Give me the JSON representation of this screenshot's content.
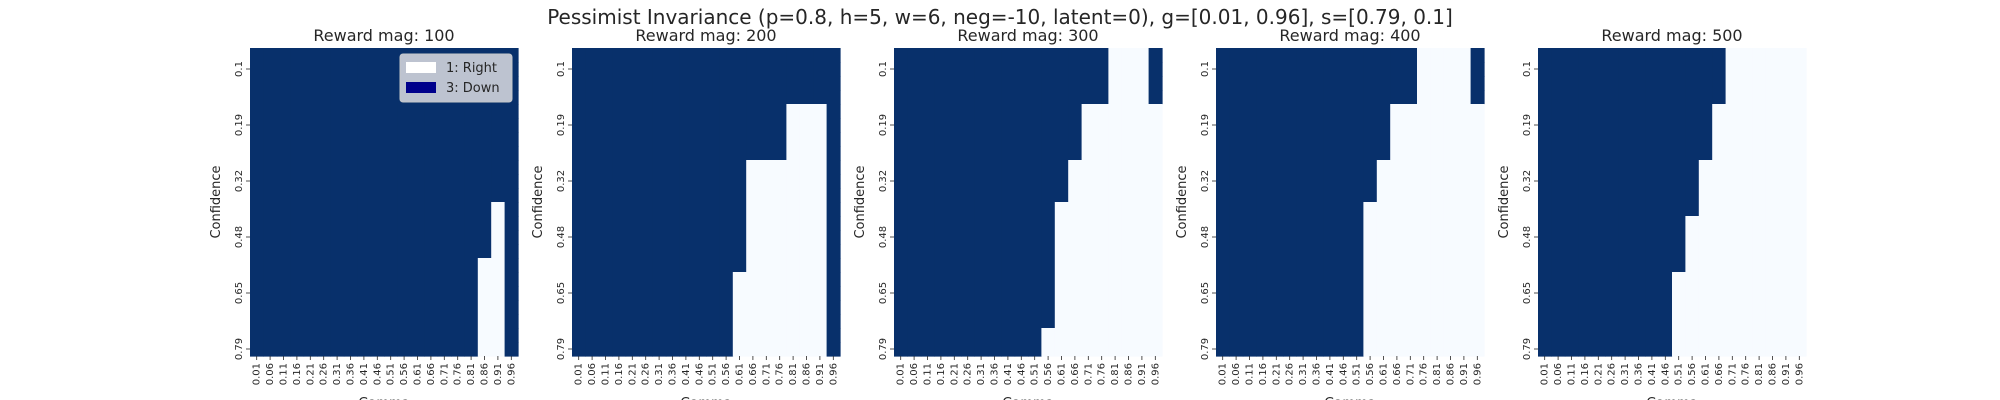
{
  "figure": {
    "suptitle": "Pessimist Invariance (p=0.8, h=5, w=6, neg=-10, latent=0), g=[0.01, 0.96], s=[0.79, 0.1]"
  },
  "colors": {
    "down": "#08306b",
    "right": "#f7fbff",
    "legend_right_swatch": "#ffffff",
    "legend_down_swatch": "#00008b",
    "legend_bg": "#c7cbd6"
  },
  "legend": {
    "items": [
      {
        "label": "1: Right",
        "color": "#ffffff"
      },
      {
        "label": "3: Down",
        "color": "#00008b"
      }
    ]
  },
  "chart_data": [
    {
      "type": "heatmap",
      "title": "Reward mag: 100",
      "xlabel": "Gamma",
      "ylabel": "Confidence",
      "x": [
        0.01,
        0.06,
        0.11,
        0.16,
        0.21,
        0.26,
        0.31,
        0.36,
        0.41,
        0.46,
        0.51,
        0.56,
        0.61,
        0.66,
        0.71,
        0.76,
        0.81,
        0.86,
        0.91,
        0.96
      ],
      "y": [
        0.1,
        0.19,
        0.32,
        0.48,
        0.65,
        0.79
      ],
      "y_rows": 22,
      "legend": "top-right",
      "boundary_first_right_col": [
        20,
        20,
        20,
        20,
        20,
        20,
        20,
        20,
        20,
        20,
        20,
        18,
        18,
        18,
        18,
        17,
        17,
        17,
        17,
        17,
        17,
        17
      ],
      "last_col_down": true
    },
    {
      "type": "heatmap",
      "title": "Reward mag: 200",
      "xlabel": "Gamma",
      "ylabel": "Confidence",
      "x": [
        0.01,
        0.06,
        0.11,
        0.16,
        0.21,
        0.26,
        0.31,
        0.36,
        0.41,
        0.46,
        0.51,
        0.56,
        0.61,
        0.66,
        0.71,
        0.76,
        0.81,
        0.86,
        0.91,
        0.96
      ],
      "y": [
        0.1,
        0.19,
        0.32,
        0.48,
        0.65,
        0.79
      ],
      "y_rows": 22,
      "boundary_first_right_col": [
        20,
        20,
        20,
        20,
        16,
        16,
        16,
        16,
        13,
        13,
        13,
        13,
        13,
        13,
        13,
        13,
        12,
        12,
        12,
        12,
        12,
        12
      ],
      "last_col_down": true
    },
    {
      "type": "heatmap",
      "title": "Reward mag: 300",
      "xlabel": "Gamma",
      "ylabel": "Confidence",
      "x": [
        0.01,
        0.06,
        0.11,
        0.16,
        0.21,
        0.26,
        0.31,
        0.36,
        0.41,
        0.46,
        0.51,
        0.56,
        0.61,
        0.66,
        0.71,
        0.76,
        0.81,
        0.86,
        0.91,
        0.96
      ],
      "y": [
        0.1,
        0.19,
        0.32,
        0.48,
        0.65,
        0.79
      ],
      "y_rows": 22,
      "boundary_first_right_col": [
        16,
        16,
        16,
        16,
        14,
        14,
        14,
        14,
        13,
        13,
        13,
        12,
        12,
        12,
        12,
        12,
        12,
        12,
        12,
        12,
        11,
        11
      ],
      "last_col_down": [
        true,
        true,
        true,
        true,
        false,
        false,
        false,
        false,
        false,
        false,
        false,
        false,
        false,
        false,
        false,
        false,
        false,
        false,
        false,
        false,
        false,
        false
      ]
    },
    {
      "type": "heatmap",
      "title": "Reward mag: 400",
      "xlabel": "Gamma",
      "ylabel": "Confidence",
      "x": [
        0.01,
        0.06,
        0.11,
        0.16,
        0.21,
        0.26,
        0.31,
        0.36,
        0.41,
        0.46,
        0.51,
        0.56,
        0.61,
        0.66,
        0.71,
        0.76,
        0.81,
        0.86,
        0.91,
        0.96
      ],
      "y": [
        0.1,
        0.19,
        0.32,
        0.48,
        0.65,
        0.79
      ],
      "y_rows": 22,
      "boundary_first_right_col": [
        15,
        15,
        15,
        15,
        13,
        13,
        13,
        13,
        12,
        12,
        12,
        11,
        11,
        11,
        11,
        11,
        11,
        11,
        11,
        11,
        11,
        11
      ],
      "last_col_down": [
        true,
        true,
        true,
        true,
        false,
        false,
        false,
        false,
        false,
        false,
        false,
        false,
        false,
        false,
        false,
        false,
        false,
        false,
        false,
        false,
        false,
        false
      ]
    },
    {
      "type": "heatmap",
      "title": "Reward mag: 500",
      "xlabel": "Gamma",
      "ylabel": "Confidence",
      "x": [
        0.01,
        0.06,
        0.11,
        0.16,
        0.21,
        0.26,
        0.31,
        0.36,
        0.41,
        0.46,
        0.51,
        0.56,
        0.61,
        0.66,
        0.71,
        0.76,
        0.81,
        0.86,
        0.91,
        0.96
      ],
      "y": [
        0.1,
        0.19,
        0.32,
        0.48,
        0.65,
        0.79
      ],
      "y_rows": 22,
      "boundary_first_right_col": [
        14,
        14,
        14,
        14,
        13,
        13,
        13,
        13,
        12,
        12,
        12,
        12,
        11,
        11,
        11,
        11,
        10,
        10,
        10,
        10,
        10,
        10
      ],
      "last_col_down": false
    }
  ]
}
